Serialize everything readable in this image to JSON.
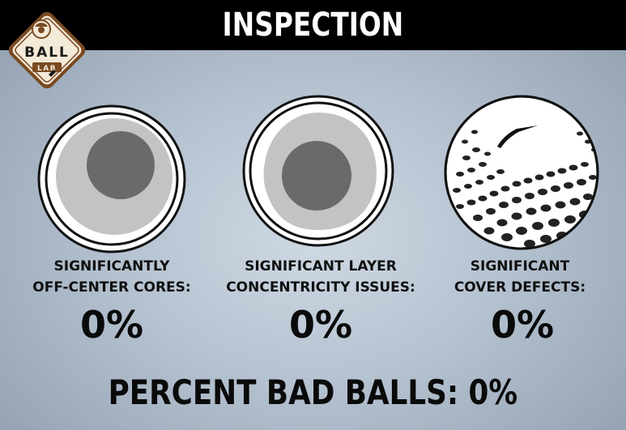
{
  "header": {
    "title": "INSPECTION"
  },
  "logo": {
    "line1": "BALL",
    "line2": "LAB"
  },
  "metrics": [
    {
      "label_line1": "SIGNIFICANTLY",
      "label_line2": "OFF-CENTER CORES:",
      "value": "0%",
      "icon": "off-center-core-icon"
    },
    {
      "label_line1": "SIGNIFICANT LAYER",
      "label_line2": "CONCENTRICITY ISSUES:",
      "value": "0%",
      "icon": "layer-concentricity-icon"
    },
    {
      "label_line1": "SIGNIFICANT",
      "label_line2": "COVER DEFECTS:",
      "value": "0%",
      "icon": "golf-ball-cover-defect-icon"
    }
  ],
  "summary": {
    "label": "PERCENT BAD BALLS:",
    "value": "0%"
  },
  "colors": {
    "background": "#b4c1cf",
    "header": "#000000",
    "text": "#0a0a0a",
    "logo_brown": "#7a4a22",
    "logo_cream": "#f4ead8"
  }
}
